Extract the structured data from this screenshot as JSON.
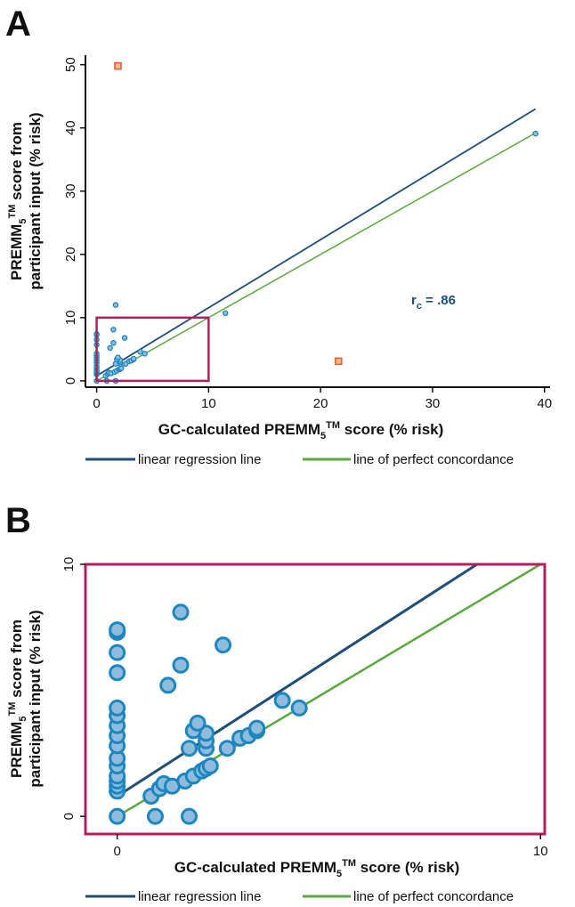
{
  "chart_data": [
    {
      "panel": "A",
      "type": "scatter",
      "xlabel": {
        "pre": "GC-calculated PREMM",
        "sub": "5",
        "tm": "TM",
        "post": " score (% risk)"
      },
      "ylabel": {
        "line1_pre": "PREMM",
        "line1_sub": "5",
        "line1_tm": "TM",
        "line1_post": " score from",
        "line2": "participant input (% risk)"
      },
      "xlim": [
        -1,
        40.5
      ],
      "ylim": [
        -1,
        51.5
      ],
      "xticks": [
        "0",
        "10",
        "20",
        "30",
        "40"
      ],
      "yticks": [
        "0",
        "10",
        "20",
        "30",
        "40",
        "50"
      ],
      "annotation": {
        "main": "r",
        "sub": "c",
        "value": " = .86",
        "x": 31,
        "y": 12.4
      },
      "regression_line": {
        "x0": 0,
        "y0": 0.8,
        "x1": 39.2,
        "y1": 43
      },
      "concordance_line": {
        "x0": 0,
        "y0": 0,
        "x1": 39.2,
        "y1": 39.2
      },
      "zoom_box": {
        "x0": 0,
        "y0": 0,
        "x1": 10,
        "y1": 10
      },
      "outliers": [
        {
          "x": 1.9,
          "y": 49.8
        },
        {
          "x": 21.6,
          "y": 3.1
        }
      ],
      "points": [
        {
          "x": 0,
          "y": 0
        },
        {
          "x": 0,
          "y": 1
        },
        {
          "x": 0,
          "y": 1.2
        },
        {
          "x": 0,
          "y": 1.4
        },
        {
          "x": 0,
          "y": 1.6
        },
        {
          "x": 0,
          "y": 2
        },
        {
          "x": 0,
          "y": 2.3
        },
        {
          "x": 0,
          "y": 2.8
        },
        {
          "x": 0,
          "y": 3.2
        },
        {
          "x": 0,
          "y": 3.6
        },
        {
          "x": 0,
          "y": 4
        },
        {
          "x": 0,
          "y": 4.3
        },
        {
          "x": 0,
          "y": 5.7
        },
        {
          "x": 0,
          "y": 6.5
        },
        {
          "x": 0,
          "y": 7.3
        },
        {
          "x": 0,
          "y": 7.4
        },
        {
          "x": 0.9,
          "y": 0
        },
        {
          "x": 1.7,
          "y": 0
        },
        {
          "x": 0.8,
          "y": 0.8
        },
        {
          "x": 1,
          "y": 1.1
        },
        {
          "x": 1.1,
          "y": 1.3
        },
        {
          "x": 1.3,
          "y": 1.2
        },
        {
          "x": 1.6,
          "y": 1.4
        },
        {
          "x": 1.8,
          "y": 1.6
        },
        {
          "x": 2,
          "y": 1.8
        },
        {
          "x": 2.1,
          "y": 1.9
        },
        {
          "x": 2.2,
          "y": 2
        },
        {
          "x": 1.7,
          "y": 2.7
        },
        {
          "x": 2.1,
          "y": 2.7
        },
        {
          "x": 2.1,
          "y": 3
        },
        {
          "x": 2.1,
          "y": 3.3
        },
        {
          "x": 2.6,
          "y": 2.7
        },
        {
          "x": 2.9,
          "y": 3.1
        },
        {
          "x": 3.1,
          "y": 3.2
        },
        {
          "x": 3.3,
          "y": 3.4
        },
        {
          "x": 3.3,
          "y": 3.5
        },
        {
          "x": 3.9,
          "y": 4.6
        },
        {
          "x": 4.3,
          "y": 4.3
        },
        {
          "x": 1.8,
          "y": 3.4
        },
        {
          "x": 1.9,
          "y": 3.7
        },
        {
          "x": 1.2,
          "y": 5.2
        },
        {
          "x": 1.5,
          "y": 6
        },
        {
          "x": 2.5,
          "y": 6.8
        },
        {
          "x": 1.5,
          "y": 8.1
        },
        {
          "x": 1.7,
          "y": 12
        },
        {
          "x": 11.5,
          "y": 10.7
        },
        {
          "x": 39.2,
          "y": 39.1
        }
      ]
    },
    {
      "panel": "B",
      "type": "scatter",
      "xlabel": {
        "pre": "GC-calculated PREMM",
        "sub": "5",
        "tm": "TM",
        "post": " score (% risk)"
      },
      "ylabel": {
        "line1_pre": "PREMM",
        "line1_sub": "5",
        "line1_tm": "TM",
        "line1_post": " score from",
        "line2": "participant input (% risk)"
      },
      "xlim": [
        -0.75,
        10.1
      ],
      "ylim": [
        -0.7,
        10
      ],
      "xticks": [
        "0",
        "10"
      ],
      "yticks": [
        "0",
        "10"
      ],
      "regression_line": {
        "x0": 0,
        "y0": 0.8,
        "x1": 8.5,
        "y1": 10
      },
      "concordance_line": {
        "x0": 0,
        "y0": 0,
        "x1": 10,
        "y1": 10
      },
      "points": [
        {
          "x": 0,
          "y": 0
        },
        {
          "x": 0,
          "y": 1
        },
        {
          "x": 0,
          "y": 1.2
        },
        {
          "x": 0,
          "y": 1.4
        },
        {
          "x": 0,
          "y": 1.6
        },
        {
          "x": 0,
          "y": 2
        },
        {
          "x": 0,
          "y": 2.3
        },
        {
          "x": 0,
          "y": 2.8
        },
        {
          "x": 0,
          "y": 3.2
        },
        {
          "x": 0,
          "y": 3.6
        },
        {
          "x": 0,
          "y": 4
        },
        {
          "x": 0,
          "y": 4.3
        },
        {
          "x": 0,
          "y": 5.7
        },
        {
          "x": 0,
          "y": 6.5
        },
        {
          "x": 0,
          "y": 7.3
        },
        {
          "x": 0,
          "y": 7.4
        },
        {
          "x": 0.9,
          "y": 0
        },
        {
          "x": 1.7,
          "y": 0
        },
        {
          "x": 0.8,
          "y": 0.8
        },
        {
          "x": 1,
          "y": 1.1
        },
        {
          "x": 1.1,
          "y": 1.3
        },
        {
          "x": 1.3,
          "y": 1.2
        },
        {
          "x": 1.6,
          "y": 1.4
        },
        {
          "x": 1.8,
          "y": 1.6
        },
        {
          "x": 2,
          "y": 1.8
        },
        {
          "x": 2.1,
          "y": 1.9
        },
        {
          "x": 2.2,
          "y": 2
        },
        {
          "x": 1.7,
          "y": 2.7
        },
        {
          "x": 2.1,
          "y": 2.7
        },
        {
          "x": 2.1,
          "y": 3
        },
        {
          "x": 2.1,
          "y": 3.3
        },
        {
          "x": 2.6,
          "y": 2.7
        },
        {
          "x": 2.9,
          "y": 3.1
        },
        {
          "x": 3.1,
          "y": 3.2
        },
        {
          "x": 3.3,
          "y": 3.4
        },
        {
          "x": 3.3,
          "y": 3.5
        },
        {
          "x": 3.9,
          "y": 4.6
        },
        {
          "x": 4.3,
          "y": 4.3
        },
        {
          "x": 1.8,
          "y": 3.4
        },
        {
          "x": 1.9,
          "y": 3.7
        },
        {
          "x": 1.2,
          "y": 5.2
        },
        {
          "x": 1.5,
          "y": 6
        },
        {
          "x": 2.5,
          "y": 6.8
        },
        {
          "x": 1.5,
          "y": 8.1
        }
      ]
    }
  ],
  "legend": {
    "regression_label": "linear regression line",
    "concordance_label": "line of perfect concordance"
  },
  "colors": {
    "regression": "#1f4e79",
    "concordance": "#5aaa3c",
    "point_fill": "#8fbcdc",
    "point_stroke": "#1b86c0",
    "outlier_fill": "#f2b99a",
    "outlier_stroke": "#e3622e",
    "box": "#b0205f",
    "axis": "#111111"
  }
}
